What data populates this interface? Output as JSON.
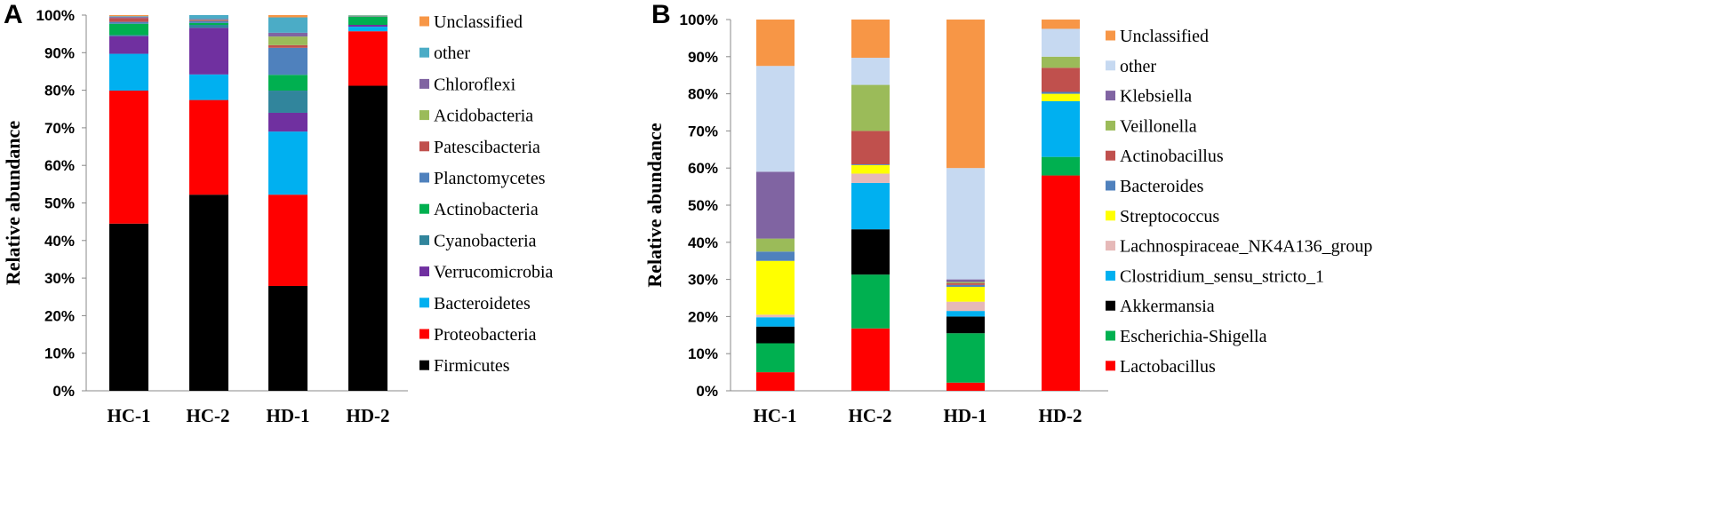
{
  "chart_data": [
    {
      "panel": "A",
      "type": "bar",
      "stacked": true,
      "ylabel": "Relative abundance",
      "xlabel": "",
      "ylim": [
        0,
        100
      ],
      "yticks": [
        "0%",
        "10%",
        "20%",
        "30%",
        "40%",
        "50%",
        "60%",
        "70%",
        "80%",
        "90%",
        "100%"
      ],
      "categories": [
        "HC-1",
        "HC-2",
        "HD-1",
        "HD-2"
      ],
      "legend_position": "right",
      "series": [
        {
          "name": "Firmicutes",
          "color": "#000000",
          "values": [
            44.5,
            52.2,
            27.9,
            81.2
          ]
        },
        {
          "name": "Proteobacteria",
          "color": "#ff0000",
          "values": [
            35.4,
            25.2,
            24.3,
            14.5
          ]
        },
        {
          "name": "Bacteroidetes",
          "color": "#00b0f0",
          "values": [
            9.8,
            6.8,
            16.8,
            1.2
          ]
        },
        {
          "name": "Verrucomicrobia",
          "color": "#7030a0",
          "values": [
            4.7,
            12.4,
            5.0,
            0.5
          ]
        },
        {
          "name": "Cyanobacteria",
          "color": "#31859c",
          "values": [
            0.3,
            0.8,
            5.9,
            0.0
          ]
        },
        {
          "name": "Actinobacteria",
          "color": "#00b050",
          "values": [
            3.0,
            0.5,
            4.2,
            2.2
          ]
        },
        {
          "name": "Planctomycetes",
          "color": "#4f81bd",
          "values": [
            0.5,
            0.5,
            7.2,
            0.1
          ]
        },
        {
          "name": "Patescibacteria",
          "color": "#c0504d",
          "values": [
            1.0,
            0.2,
            0.7,
            0.1
          ]
        },
        {
          "name": "Acidobacteria",
          "color": "#9bbb59",
          "values": [
            0.0,
            0.1,
            2.3,
            0.1
          ]
        },
        {
          "name": "Chloroflexi",
          "color": "#8064a2",
          "values": [
            0.3,
            0.3,
            1.0,
            0.0
          ]
        },
        {
          "name": "other",
          "color": "#4bacc6",
          "values": [
            0.2,
            1.0,
            4.1,
            0.1
          ]
        },
        {
          "name": "Unclassified",
          "color": "#f79646",
          "values": [
            0.3,
            0.0,
            0.6,
            0.0
          ]
        }
      ]
    },
    {
      "panel": "B",
      "type": "bar",
      "stacked": true,
      "ylabel": "Relative abundance",
      "xlabel": "",
      "ylim": [
        0,
        100
      ],
      "yticks": [
        "0%",
        "10%",
        "20%",
        "30%",
        "40%",
        "50%",
        "60%",
        "70%",
        "80%",
        "90%",
        "100%"
      ],
      "categories": [
        "HC-1",
        "HC-2",
        "HD-1",
        "HD-2"
      ],
      "legend_position": "right",
      "series": [
        {
          "name": "Lactobacillus",
          "color": "#ff0000",
          "values": [
            5.0,
            16.8,
            2.2,
            58.0
          ]
        },
        {
          "name": "Escherichia-Shigella",
          "color": "#00b050",
          "values": [
            7.8,
            14.5,
            13.3,
            5.0
          ]
        },
        {
          "name": "Akkermansia",
          "color": "#000000",
          "values": [
            4.5,
            12.2,
            4.5,
            0.0
          ]
        },
        {
          "name": "Clostridium_sensu_stricto_1",
          "color": "#00b0f0",
          "values": [
            2.5,
            12.5,
            1.5,
            15.0
          ]
        },
        {
          "name": "Lachnospiraceae_NK4A136_group",
          "color": "#e6b9b8",
          "values": [
            0.7,
            2.5,
            2.5,
            0.0
          ]
        },
        {
          "name": "Streptococcus",
          "color": "#ffff00",
          "values": [
            14.5,
            2.3,
            4.0,
            2.0
          ]
        },
        {
          "name": "Bacteroides",
          "color": "#4f81bd",
          "values": [
            2.5,
            0.2,
            0.5,
            0.5
          ]
        },
        {
          "name": "Actinobacillus",
          "color": "#c0504d",
          "values": [
            0.0,
            9.0,
            0.5,
            6.5
          ]
        },
        {
          "name": "Veillonella",
          "color": "#9bbb59",
          "values": [
            3.5,
            12.4,
            0.3,
            3.0
          ]
        },
        {
          "name": "Klebsiella",
          "color": "#8064a2",
          "values": [
            18.0,
            0.0,
            0.7,
            0.0
          ]
        },
        {
          "name": "other",
          "color": "#c6d9f1",
          "values": [
            28.5,
            7.3,
            30.0,
            7.5
          ]
        },
        {
          "name": "Unclassified",
          "color": "#f79646",
          "values": [
            12.5,
            10.3,
            40.0,
            2.5
          ]
        }
      ]
    }
  ]
}
